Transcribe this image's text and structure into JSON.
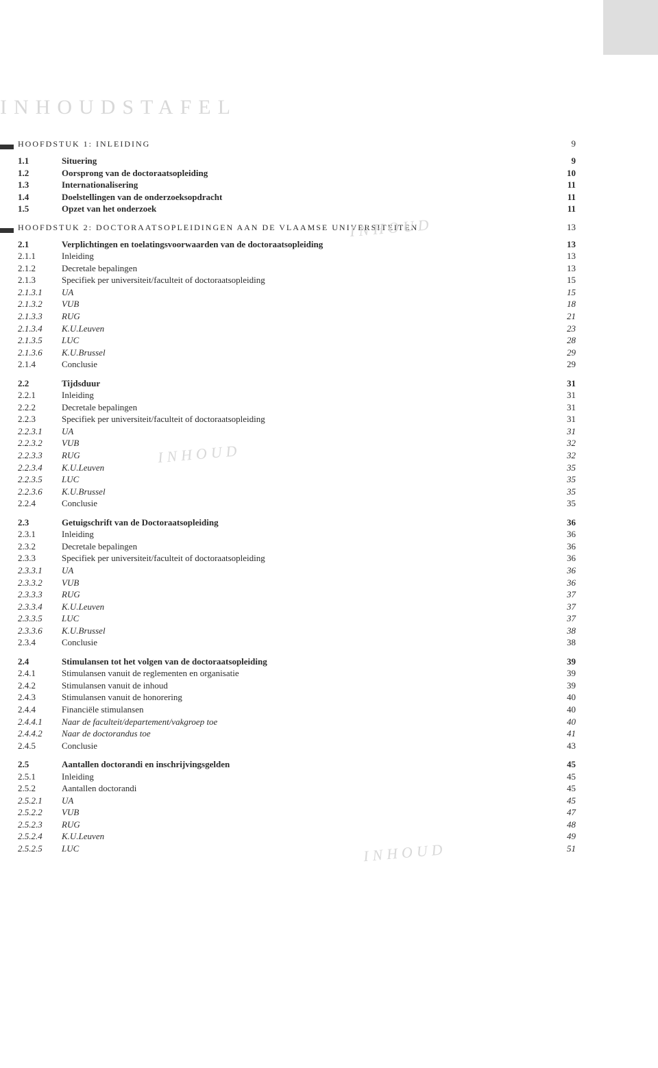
{
  "mainTitle": "INHOUDSTAFEL",
  "watermark": "INHOUD",
  "chapters": [
    {
      "title": "HOOFDSTUK 1: INLEIDING",
      "page": "9"
    },
    {
      "title": "HOOFDSTUK 2: DOCTORAATSOPLEIDINGEN AAN DE VLAAMSE UNIVERSITEITEN",
      "page": "13"
    }
  ],
  "g1": [
    {
      "n": "1.1",
      "t": "Situering",
      "p": "9",
      "b": true
    },
    {
      "n": "1.2",
      "t": "Oorsprong van de doctoraatsopleiding",
      "p": "10",
      "b": true
    },
    {
      "n": "1.3",
      "t": "Internationalisering",
      "p": "11",
      "b": true
    },
    {
      "n": "1.4",
      "t": "Doelstellingen van de onderzoeksopdracht",
      "p": "11",
      "b": true
    },
    {
      "n": "1.5",
      "t": "Opzet van het onderzoek",
      "p": "11",
      "b": true
    }
  ],
  "g2": [
    {
      "n": "2.1",
      "t": "Verplichtingen en toelatingsvoorwaarden van de doctoraatsopleiding",
      "p": "13",
      "b": true
    },
    {
      "n": "2.1.1",
      "t": "Inleiding",
      "p": "13"
    },
    {
      "n": "2.1.2",
      "t": "Decretale bepalingen",
      "p": "13"
    },
    {
      "n": "2.1.3",
      "t": "Specifiek per universiteit/faculteit of doctoraatsopleiding",
      "p": "15"
    },
    {
      "n": "2.1.3.1",
      "t": "UA",
      "p": "15",
      "i": true
    },
    {
      "n": "2.1.3.2",
      "t": "VUB",
      "p": "18",
      "i": true
    },
    {
      "n": "2.1.3.3",
      "t": "RUG",
      "p": "21",
      "i": true
    },
    {
      "n": "2.1.3.4",
      "t": "K.U.Leuven",
      "p": "23",
      "i": true
    },
    {
      "n": "2.1.3.5",
      "t": "LUC",
      "p": "28",
      "i": true
    },
    {
      "n": "2.1.3.6",
      "t": "K.U.Brussel",
      "p": "29",
      "i": true
    },
    {
      "n": "2.1.4",
      "t": "Conclusie",
      "p": "29"
    }
  ],
  "g3": [
    {
      "n": "2.2",
      "t": "Tijdsduur",
      "p": "31",
      "b": true
    },
    {
      "n": "2.2.1",
      "t": "Inleiding",
      "p": "31"
    },
    {
      "n": "2.2.2",
      "t": "Decretale bepalingen",
      "p": "31"
    },
    {
      "n": "2.2.3",
      "t": "Specifiek per universiteit/faculteit of doctoraatsopleiding",
      "p": "31"
    },
    {
      "n": "2.2.3.1",
      "t": "UA",
      "p": "31",
      "i": true
    },
    {
      "n": "2.2.3.2",
      "t": "VUB",
      "p": "32",
      "i": true
    },
    {
      "n": "2.2.3.3",
      "t": "RUG",
      "p": "32",
      "i": true
    },
    {
      "n": "2.2.3.4",
      "t": "K.U.Leuven",
      "p": "35",
      "i": true
    },
    {
      "n": "2.2.3.5",
      "t": "LUC",
      "p": "35",
      "i": true
    },
    {
      "n": "2.2.3.6",
      "t": "K.U.Brussel",
      "p": "35",
      "i": true
    },
    {
      "n": "2.2.4",
      "t": "Conclusie",
      "p": "35"
    }
  ],
  "g4": [
    {
      "n": "2.3",
      "t": "Getuigschrift van de Doctoraatsopleiding",
      "p": "36",
      "b": true
    },
    {
      "n": "2.3.1",
      "t": "Inleiding",
      "p": "36"
    },
    {
      "n": "2.3.2",
      "t": "Decretale bepalingen",
      "p": "36"
    },
    {
      "n": "2.3.3",
      "t": "Specifiek per universiteit/faculteit of doctoraatsopleiding",
      "p": "36"
    },
    {
      "n": "2.3.3.1",
      "t": "UA",
      "p": "36",
      "i": true
    },
    {
      "n": "2.3.3.2",
      "t": "VUB",
      "p": "36",
      "i": true
    },
    {
      "n": "2.3.3.3",
      "t": "RUG",
      "p": "37",
      "i": true
    },
    {
      "n": "2.3.3.4",
      "t": "K.U.Leuven",
      "p": "37",
      "i": true
    },
    {
      "n": "2.3.3.5",
      "t": "LUC",
      "p": "37",
      "i": true
    },
    {
      "n": "2.3.3.6",
      "t": "K.U.Brussel",
      "p": "38",
      "i": true
    },
    {
      "n": "2.3.4",
      "t": "Conclusie",
      "p": "38"
    }
  ],
  "g5": [
    {
      "n": "2.4",
      "t": "Stimulansen tot het volgen van de doctoraatsopleiding",
      "p": "39",
      "b": true
    },
    {
      "n": "2.4.1",
      "t": "Stimulansen vanuit de reglementen en organisatie",
      "p": "39"
    },
    {
      "n": "2.4.2",
      "t": "Stimulansen vanuit de inhoud",
      "p": "39"
    },
    {
      "n": "2.4.3",
      "t": "Stimulansen vanuit de honorering",
      "p": "40"
    },
    {
      "n": "2.4.4",
      "t": "Financiële stimulansen",
      "p": "40"
    },
    {
      "n": "2.4.4.1",
      "t": "Naar de faculteit/departement/vakgroep toe",
      "p": "40",
      "i": true
    },
    {
      "n": "2.4.4.2",
      "t": "Naar de doctorandus toe",
      "p": "41",
      "i": true
    },
    {
      "n": "2.4.5",
      "t": "Conclusie",
      "p": "43"
    }
  ],
  "g6": [
    {
      "n": "2.5",
      "t": "Aantallen doctorandi en inschrijvingsgelden",
      "p": "45",
      "b": true
    },
    {
      "n": "2.5.1",
      "t": "Inleiding",
      "p": "45"
    },
    {
      "n": "2.5.2",
      "t": "Aantallen doctorandi",
      "p": "45"
    },
    {
      "n": "2.5.2.1",
      "t": "UA",
      "p": "45",
      "i": true
    },
    {
      "n": "2.5.2.2",
      "t": "VUB",
      "p": "47",
      "i": true
    },
    {
      "n": "2.5.2.3",
      "t": "RUG",
      "p": "48",
      "i": true
    },
    {
      "n": "2.5.2.4",
      "t": "K.U.Leuven",
      "p": "49",
      "i": true
    },
    {
      "n": "2.5.2.5",
      "t": "LUC",
      "p": "51",
      "i": true
    }
  ]
}
